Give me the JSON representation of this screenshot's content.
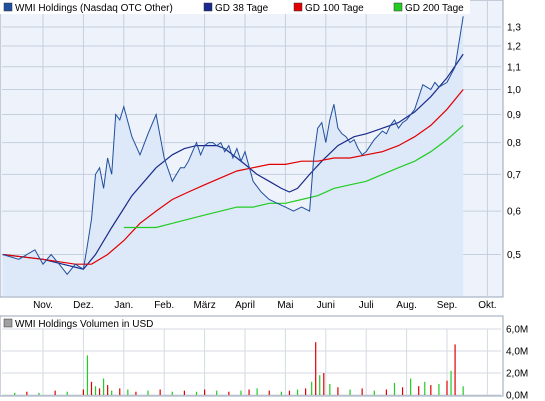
{
  "chart_data": [
    {
      "type": "line",
      "legend_position": "top",
      "legend": [
        {
          "name": "WMI Holdings (Nasdaq OTC Other)",
          "color": "#1f4f9e"
        },
        {
          "name": "GD 38 Tage",
          "color": "#1a2a8c"
        },
        {
          "name": "GD 100 Tage",
          "color": "#e00000"
        },
        {
          "name": "GD 200 Tage",
          "color": "#22cc22"
        }
      ],
      "x_ticks": [
        "Nov.",
        "Dez.",
        "Jan.",
        "Feb.",
        "März",
        "April",
        "Mai",
        "Juni",
        "Juli",
        "Aug.",
        "Sep.",
        "Okt."
      ],
      "y_ticks": [
        "0,5",
        "0,6",
        "0,7",
        "0,8",
        "0,9",
        "1,0",
        "1,1",
        "1,2",
        "1,3"
      ],
      "y_scale": "log",
      "ylim": [
        0.42,
        1.45
      ],
      "grid": true,
      "series": [
        {
          "name": "WMI Holdings (Nasdaq OTC Other)",
          "color": "#1f4f9e",
          "fill": "#dde8f8",
          "x": [
            0,
            0.4,
            0.8,
            1.0,
            1.2,
            1.4,
            1.6,
            1.8,
            2.0,
            2.1,
            2.2,
            2.3,
            2.4,
            2.5,
            2.6,
            2.7,
            2.8,
            2.9,
            3.0,
            3.2,
            3.4,
            3.6,
            3.8,
            4.0,
            4.2,
            4.4,
            4.5,
            4.6,
            4.7,
            4.8,
            4.9,
            5.0,
            5.1,
            5.2,
            5.3,
            5.4,
            5.5,
            5.6,
            5.7,
            5.8,
            5.9,
            6.0,
            6.2,
            6.4,
            6.6,
            6.8,
            7.0,
            7.2,
            7.4,
            7.6,
            7.7,
            7.8,
            7.9,
            8.0,
            8.1,
            8.2,
            8.3,
            8.4,
            8.5,
            8.6,
            8.7,
            8.8,
            8.9,
            9.0,
            9.2,
            9.4,
            9.5,
            9.6,
            9.7,
            9.8,
            9.9,
            10.0,
            10.2,
            10.4,
            10.5,
            10.6,
            10.7,
            10.8,
            10.9,
            11.0,
            11.2,
            11.4
          ],
          "values": [
            0.5,
            0.49,
            0.51,
            0.48,
            0.5,
            0.48,
            0.46,
            0.48,
            0.47,
            0.52,
            0.58,
            0.7,
            0.72,
            0.66,
            0.75,
            0.7,
            0.9,
            0.88,
            0.93,
            0.82,
            0.76,
            0.83,
            0.9,
            0.75,
            0.68,
            0.72,
            0.72,
            0.74,
            0.77,
            0.8,
            0.76,
            0.79,
            0.8,
            0.8,
            0.79,
            0.8,
            0.77,
            0.79,
            0.75,
            0.78,
            0.74,
            0.77,
            0.68,
            0.65,
            0.63,
            0.62,
            0.61,
            0.6,
            0.61,
            0.6,
            0.75,
            0.85,
            0.87,
            0.8,
            0.88,
            0.94,
            0.85,
            0.83,
            0.82,
            0.8,
            0.81,
            0.78,
            0.76,
            0.77,
            0.81,
            0.84,
            0.83,
            0.86,
            0.88,
            0.85,
            0.87,
            0.88,
            0.92,
            1.02,
            1.01,
            1.0,
            1.03,
            1.01,
            1.02,
            1.03,
            1.1,
            1.36
          ]
        },
        {
          "name": "GD 38 Tage",
          "color": "#1a2a8c",
          "x": [
            0,
            1.0,
            2.0,
            2.3,
            2.7,
            3.2,
            3.8,
            4.2,
            4.5,
            4.8,
            5.1,
            5.3,
            5.5,
            5.8,
            6.0,
            6.3,
            6.6,
            6.9,
            7.1,
            7.3,
            7.6,
            7.9,
            8.3,
            8.7,
            9.0,
            9.4,
            9.8,
            10.2,
            10.6,
            11.0,
            11.4
          ],
          "values": [
            0.5,
            0.49,
            0.47,
            0.5,
            0.56,
            0.64,
            0.72,
            0.76,
            0.78,
            0.79,
            0.79,
            0.79,
            0.78,
            0.75,
            0.73,
            0.7,
            0.68,
            0.66,
            0.65,
            0.66,
            0.7,
            0.74,
            0.79,
            0.82,
            0.83,
            0.85,
            0.87,
            0.91,
            0.97,
            1.05,
            1.16
          ]
        },
        {
          "name": "GD 100 Tage",
          "color": "#e00000",
          "x": [
            0,
            1.0,
            1.8,
            2.2,
            2.6,
            3.0,
            3.4,
            3.8,
            4.2,
            4.6,
            5.0,
            5.4,
            5.8,
            6.2,
            6.6,
            7.0,
            7.4,
            7.8,
            8.2,
            8.6,
            9.0,
            9.4,
            9.8,
            10.2,
            10.6,
            11.0,
            11.4
          ],
          "values": [
            0.5,
            0.49,
            0.48,
            0.48,
            0.5,
            0.53,
            0.57,
            0.6,
            0.63,
            0.65,
            0.67,
            0.69,
            0.71,
            0.72,
            0.73,
            0.73,
            0.74,
            0.74,
            0.75,
            0.75,
            0.76,
            0.77,
            0.79,
            0.82,
            0.86,
            0.92,
            1.0
          ]
        },
        {
          "name": "GD 200 Tage",
          "color": "#22cc22",
          "x": [
            3.0,
            3.4,
            3.8,
            4.2,
            4.6,
            5.0,
            5.4,
            5.8,
            6.2,
            6.6,
            7.0,
            7.4,
            7.8,
            8.2,
            8.6,
            9.0,
            9.4,
            9.8,
            10.2,
            10.6,
            11.0,
            11.4
          ],
          "values": [
            0.56,
            0.56,
            0.56,
            0.57,
            0.58,
            0.59,
            0.6,
            0.61,
            0.61,
            0.62,
            0.62,
            0.63,
            0.64,
            0.66,
            0.67,
            0.68,
            0.7,
            0.72,
            0.74,
            0.77,
            0.81,
            0.86
          ]
        }
      ]
    },
    {
      "type": "bar",
      "legend": [
        {
          "name": "WMI Holdings Volumen in USD",
          "color": "#a0a0a0"
        }
      ],
      "y_ticks": [
        "0,0M",
        "2,0M",
        "4,0M",
        "6,0M"
      ],
      "ylim": [
        0,
        6
      ],
      "grid": true,
      "x_ticks": [
        "Nov.",
        "Dez.",
        "Jan.",
        "Feb.",
        "März",
        "April",
        "Mai",
        "Juni",
        "Juli",
        "Aug.",
        "Sep.",
        "Okt."
      ],
      "series": [
        {
          "name": "WMI Holdings Volumen in USD",
          "colors": [
            "#22cc22",
            "#e00000"
          ],
          "x": [
            0.3,
            0.6,
            0.9,
            1.3,
            1.6,
            2.0,
            2.1,
            2.2,
            2.3,
            2.4,
            2.5,
            2.6,
            2.7,
            2.9,
            3.1,
            3.3,
            3.6,
            3.9,
            4.2,
            4.5,
            4.8,
            5.0,
            5.3,
            5.6,
            5.9,
            6.1,
            6.3,
            6.6,
            6.9,
            7.1,
            7.3,
            7.5,
            7.65,
            7.75,
            7.85,
            7.95,
            8.1,
            8.3,
            8.6,
            8.9,
            9.2,
            9.5,
            9.7,
            9.9,
            10.1,
            10.3,
            10.45,
            10.6,
            10.8,
            11.0,
            11.1,
            11.2,
            11.4
          ],
          "values": [
            0.2,
            0.3,
            0.2,
            0.4,
            0.3,
            0.5,
            3.6,
            1.2,
            0.8,
            0.6,
            1.5,
            0.9,
            0.4,
            0.6,
            0.5,
            0.3,
            0.4,
            0.5,
            0.3,
            0.4,
            0.3,
            0.5,
            0.4,
            0.3,
            0.4,
            0.5,
            0.6,
            0.4,
            0.3,
            0.4,
            0.5,
            0.6,
            1.2,
            4.8,
            1.8,
            2.0,
            1.0,
            0.7,
            0.5,
            0.6,
            0.4,
            0.5,
            1.1,
            0.7,
            1.5,
            0.8,
            1.2,
            0.9,
            1.0,
            1.3,
            2.2,
            4.6,
            0.8
          ]
        }
      ]
    }
  ]
}
